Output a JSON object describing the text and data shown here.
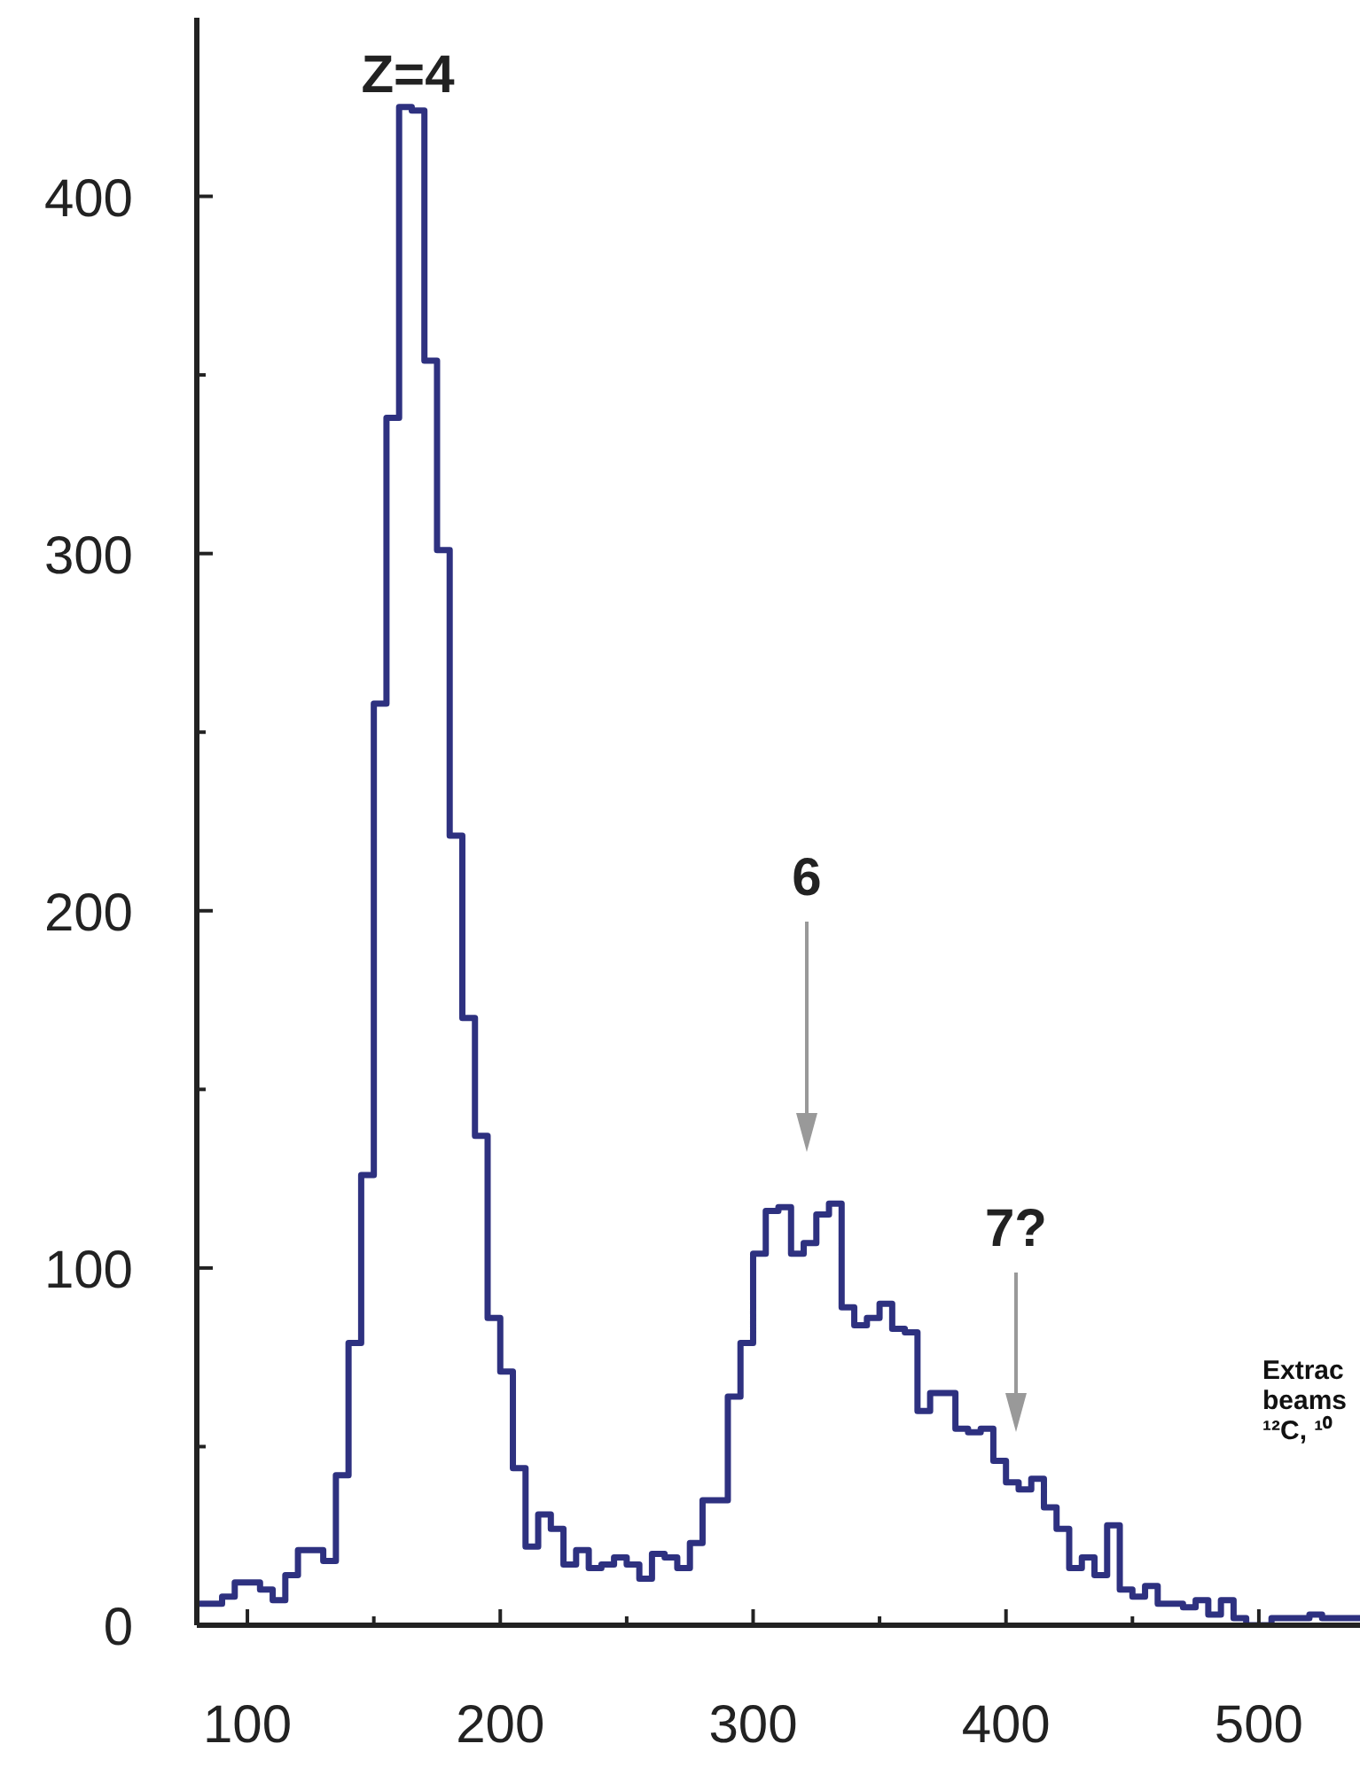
{
  "chart_data": {
    "type": "histogram",
    "bins": [
      80,
      85,
      90,
      95,
      100,
      105,
      110,
      115,
      120,
      125,
      130,
      135,
      140,
      145,
      150,
      155,
      160,
      165,
      170,
      175,
      180,
      185,
      190,
      195,
      200,
      205,
      210,
      215,
      220,
      225,
      230,
      235,
      240,
      245,
      250,
      255,
      260,
      265,
      270,
      275,
      280,
      285,
      290,
      295,
      300,
      305,
      310,
      315,
      320,
      325,
      330,
      335,
      340,
      345,
      350,
      355,
      360,
      365,
      370,
      375,
      380,
      385,
      390,
      395,
      400,
      405,
      410,
      415,
      420,
      425,
      430,
      435,
      440,
      445,
      450,
      455,
      460,
      465,
      470,
      475,
      480,
      485,
      490,
      495,
      500,
      505,
      510,
      515,
      520,
      525,
      530,
      535,
      540
    ],
    "values": [
      6,
      6,
      8,
      12,
      12,
      10,
      7,
      14,
      21,
      21,
      18,
      42,
      79,
      126,
      258,
      338,
      425,
      424,
      354,
      301,
      221,
      170,
      137,
      86,
      71,
      44,
      22,
      31,
      27,
      17,
      21,
      16,
      17,
      19,
      17,
      13,
      20,
      19,
      16,
      23,
      35,
      35,
      64,
      79,
      104,
      116,
      117,
      104,
      107,
      115,
      118,
      89,
      84,
      86,
      90,
      83,
      82,
      60,
      65,
      65,
      55,
      54,
      55,
      46,
      40,
      38,
      41,
      33,
      27,
      16,
      19,
      14,
      28,
      10,
      8,
      11,
      6,
      6,
      5,
      7,
      3,
      7,
      2,
      0,
      0,
      2,
      2,
      2,
      3,
      2,
      2,
      2
    ],
    "color": "#2e3180",
    "xlim": [
      80,
      540
    ],
    "xticks": [
      100,
      {
        "value": 150,
        "label": null
      },
      200,
      {
        "value": 250,
        "label": null
      },
      300,
      {
        "value": 350,
        "label": null
      },
      400,
      {
        "value": 450,
        "label": null
      },
      500
    ],
    "ylim": [
      0,
      450
    ],
    "yticks": [
      0,
      {
        "value": 50,
        "label": null
      },
      100,
      {
        "value": 150,
        "label": null
      },
      200,
      {
        "value": 250,
        "label": null
      },
      300,
      {
        "value": 350,
        "label": null
      },
      400
    ],
    "annotations": [
      "Z=4",
      "6",
      "7?",
      "Extrac\nbeams\n¹²C, ¹⁰"
    ]
  }
}
